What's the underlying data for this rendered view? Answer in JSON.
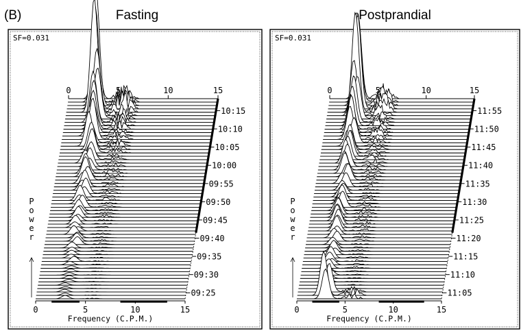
{
  "figure_label": "(B)",
  "panels": [
    {
      "id": "fasting",
      "title": "Fasting",
      "sf": "SF=0.031",
      "power_label": "Power",
      "xlabel": "Frequency (C.P.M.)",
      "xticks": [
        "0",
        "5",
        "10",
        "15"
      ],
      "top_xticks": [
        "0",
        "5",
        "10",
        "15"
      ],
      "time_labels": [
        "10:15",
        "10:10",
        "10:05",
        "10:00",
        "09:55",
        "09:50",
        "09:45",
        "09:40",
        "09:35",
        "09:30",
        "09:25"
      ]
    },
    {
      "id": "postprandial",
      "title": "Postprandial",
      "sf": "SF=0.031",
      "power_label": "Power",
      "xlabel": "Frequency (C.P.M.)",
      "xticks": [
        "0",
        "5",
        "10",
        "15"
      ],
      "top_xticks": [
        "0",
        "5",
        "10",
        "15"
      ],
      "time_labels": [
        "11:55",
        "11:50",
        "11:45",
        "11:40",
        "11:35",
        "11:30",
        "11:25",
        "11:20",
        "11:15",
        "11:10",
        "11:05"
      ]
    }
  ],
  "chart_data": [
    {
      "type": "line",
      "title": "Fasting",
      "xlabel": "Frequency (C.P.M.)",
      "ylabel": "Power",
      "xlim": [
        0,
        15
      ],
      "series": [
        {
          "time": "09:25",
          "peak_frequency": 3.0,
          "peak_power": 0.3
        },
        {
          "time": "09:30",
          "peak_frequency": 3.0,
          "peak_power": 0.6
        },
        {
          "time": "09:35",
          "peak_frequency": 3.0,
          "peak_power": 0.7
        },
        {
          "time": "09:40",
          "peak_frequency": 3.0,
          "peak_power": 0.5
        },
        {
          "time": "09:45",
          "peak_frequency": 3.0,
          "peak_power": 0.8
        },
        {
          "time": "09:50",
          "peak_frequency": 3.0,
          "peak_power": 1.2
        },
        {
          "time": "09:55",
          "peak_frequency": 3.0,
          "peak_power": 1.5
        },
        {
          "time": "10:00",
          "peak_frequency": 3.0,
          "peak_power": 1.3
        },
        {
          "time": "10:05",
          "peak_frequency": 3.0,
          "peak_power": 1.4
        },
        {
          "time": "10:10",
          "peak_frequency": 3.0,
          "peak_power": 1.8
        },
        {
          "time": "10:15",
          "peak_frequency": 3.0,
          "peak_power": 2.2
        }
      ]
    },
    {
      "type": "line",
      "title": "Postprandial",
      "xlabel": "Frequency (C.P.M.)",
      "ylabel": "Power",
      "xlim": [
        0,
        15
      ],
      "series": [
        {
          "time": "11:05",
          "peak_frequency": 3.0,
          "peak_power": 1.6
        },
        {
          "time": "11:10",
          "peak_frequency": 3.0,
          "peak_power": 0.9
        },
        {
          "time": "11:15",
          "peak_frequency": 3.0,
          "peak_power": 1.1
        },
        {
          "time": "11:20",
          "peak_frequency": 3.0,
          "peak_power": 1.3
        },
        {
          "time": "11:25",
          "peak_frequency": 3.0,
          "peak_power": 1.5
        },
        {
          "time": "11:30",
          "peak_frequency": 3.0,
          "peak_power": 1.4
        },
        {
          "time": "11:35",
          "peak_frequency": 3.0,
          "peak_power": 1.6
        },
        {
          "time": "11:40",
          "peak_frequency": 3.0,
          "peak_power": 1.8
        },
        {
          "time": "11:45",
          "peak_frequency": 3.0,
          "peak_power": 2.0
        },
        {
          "time": "11:50",
          "peak_frequency": 3.0,
          "peak_power": 2.3
        },
        {
          "time": "11:55",
          "peak_frequency": 3.0,
          "peak_power": 2.8
        }
      ]
    }
  ]
}
